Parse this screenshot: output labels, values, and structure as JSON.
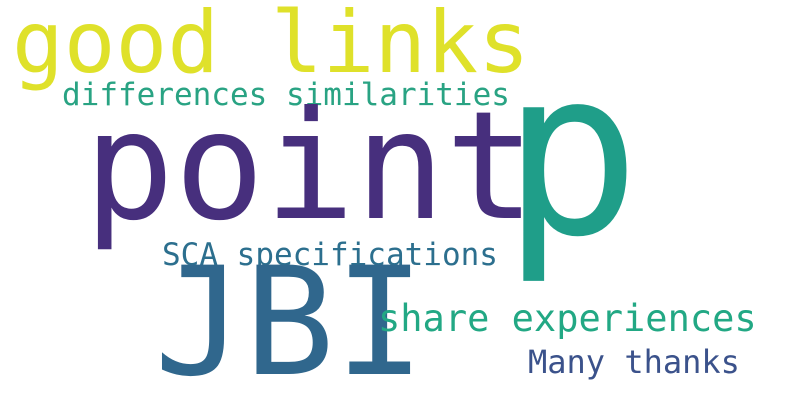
{
  "cloud": {
    "words": [
      {
        "id": "good-links",
        "text": "good links",
        "color": "#dfe12a"
      },
      {
        "id": "diff-sim",
        "text": "differences similarities",
        "color": "#29a383"
      },
      {
        "id": "point",
        "text": "point",
        "color": "#472f7d"
      },
      {
        "id": "p",
        "text": "p",
        "color": "#1f9e89"
      },
      {
        "id": "sca",
        "text": "SCA specifications",
        "color": "#2c6f8e"
      },
      {
        "id": "jbi",
        "text": "JBI",
        "color": "#30678d"
      },
      {
        "id": "share",
        "text": "share experiences",
        "color": "#22a884"
      },
      {
        "id": "thanks",
        "text": "Many thanks",
        "color": "#3b528b"
      }
    ]
  }
}
